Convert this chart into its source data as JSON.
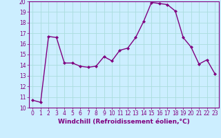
{
  "x": [
    0,
    1,
    2,
    3,
    4,
    5,
    6,
    7,
    8,
    9,
    10,
    11,
    12,
    13,
    14,
    15,
    16,
    17,
    18,
    19,
    20,
    21,
    22,
    23
  ],
  "y": [
    10.7,
    10.5,
    16.7,
    16.6,
    14.2,
    14.2,
    13.9,
    13.8,
    13.9,
    14.8,
    14.4,
    15.4,
    15.6,
    16.6,
    18.1,
    19.9,
    19.8,
    19.7,
    19.1,
    16.6,
    15.7,
    14.1,
    14.5,
    13.2
  ],
  "line_color": "#800080",
  "marker": "D",
  "marker_size": 2,
  "linewidth": 1.0,
  "bg_color": "#cceeff",
  "grid_color": "#aadddd",
  "xlabel": "Windchill (Refroidissement éolien,°C)",
  "xlabel_color": "#800080",
  "xlabel_fontsize": 6.5,
  "ylim": [
    10,
    20
  ],
  "xlim_min": -0.5,
  "xlim_max": 23.5,
  "yticks": [
    10,
    11,
    12,
    13,
    14,
    15,
    16,
    17,
    18,
    19,
    20
  ],
  "xticks": [
    0,
    1,
    2,
    3,
    4,
    5,
    6,
    7,
    8,
    9,
    10,
    11,
    12,
    13,
    14,
    15,
    16,
    17,
    18,
    19,
    20,
    21,
    22,
    23
  ],
  "tick_color": "#800080",
  "tick_fontsize": 5.5,
  "spine_color": "#800080"
}
